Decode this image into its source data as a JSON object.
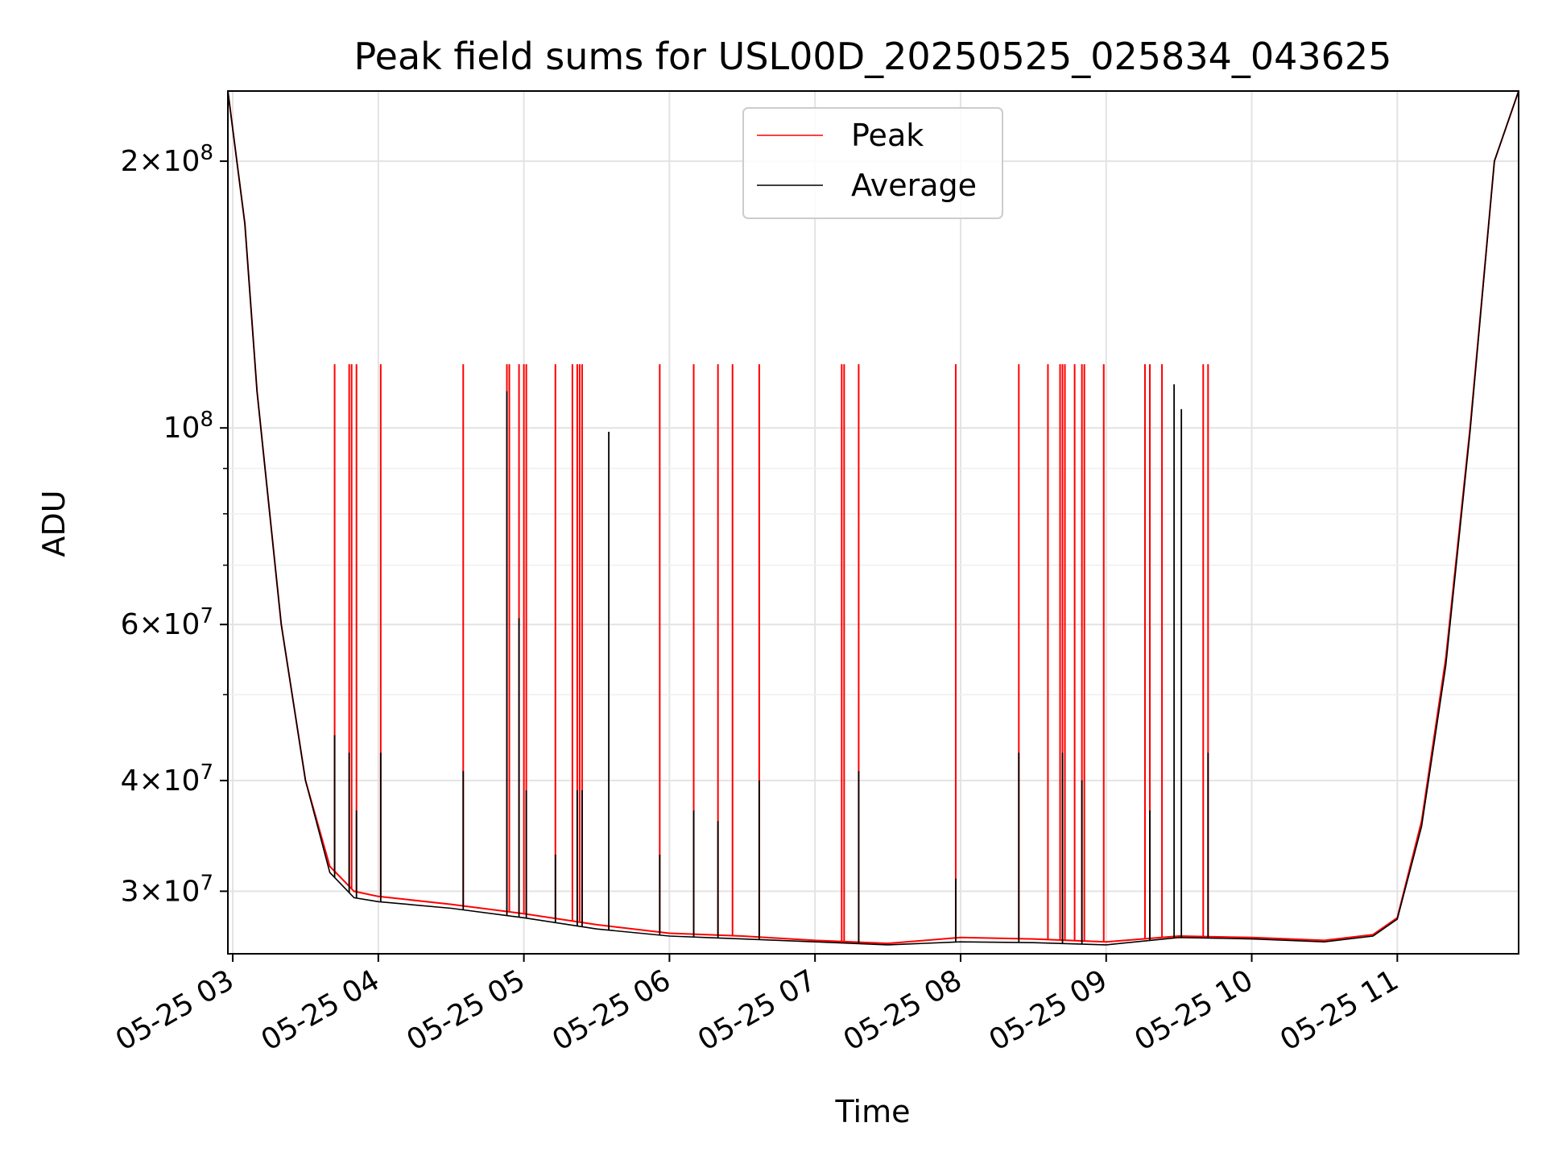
{
  "chart_data": {
    "type": "line",
    "title": "Peak field sums for USL00D_20250525_025834_043625",
    "xlabel": "Time",
    "ylabel": "ADU",
    "x_axis": "time",
    "y_scale": "log",
    "xlim": [
      "2025-05-25 02:58",
      "2025-05-25 11:50"
    ],
    "ylim": [
      25500000,
      240000000
    ],
    "grid": true,
    "legend_position": "upper center",
    "x_ticks": [
      {
        "value": "2025-05-25 03:00",
        "label": "05-25 03"
      },
      {
        "value": "2025-05-25 04:00",
        "label": "05-25 04"
      },
      {
        "value": "2025-05-25 05:00",
        "label": "05-25 05"
      },
      {
        "value": "2025-05-25 06:00",
        "label": "05-25 06"
      },
      {
        "value": "2025-05-25 07:00",
        "label": "05-25 07"
      },
      {
        "value": "2025-05-25 08:00",
        "label": "05-25 08"
      },
      {
        "value": "2025-05-25 09:00",
        "label": "05-25 09"
      },
      {
        "value": "2025-05-25 10:00",
        "label": "05-25 10"
      },
      {
        "value": "2025-05-25 11:00",
        "label": "05-25 11"
      }
    ],
    "y_ticks": [
      {
        "value": 30000000,
        "mantissa": "3",
        "exp": "7"
      },
      {
        "value": 40000000,
        "mantissa": "4",
        "exp": "7"
      },
      {
        "value": 60000000,
        "mantissa": "6",
        "exp": "7"
      },
      {
        "value": 100000000,
        "mantissa": "",
        "exp": "8"
      },
      {
        "value": 200000000,
        "mantissa": "2",
        "exp": "8"
      }
    ],
    "y_minor_ticks": [
      50000000,
      70000000,
      80000000,
      90000000
    ],
    "series": [
      {
        "name": "Peak",
        "color": "#ff0000",
        "points": [
          [
            "2025-05-25 02:58",
            240000000
          ],
          [
            "2025-05-25 03:05",
            170000000
          ],
          [
            "2025-05-25 03:10",
            110000000
          ],
          [
            "2025-05-25 03:20",
            60000000
          ],
          [
            "2025-05-25 03:30",
            40000000
          ],
          [
            "2025-05-25 03:40",
            32000000
          ],
          [
            "2025-05-25 03:50",
            30000000
          ],
          [
            "2025-05-25 04:00",
            29600000
          ],
          [
            "2025-05-25 04:30",
            29000000
          ],
          [
            "2025-05-25 05:00",
            28300000
          ],
          [
            "2025-05-25 05:30",
            27500000
          ],
          [
            "2025-05-25 06:00",
            26900000
          ],
          [
            "2025-05-25 06:30",
            26700000
          ],
          [
            "2025-05-25 07:00",
            26400000
          ],
          [
            "2025-05-25 07:30",
            26200000
          ],
          [
            "2025-05-25 08:00",
            26600000
          ],
          [
            "2025-05-25 08:30",
            26500000
          ],
          [
            "2025-05-25 09:00",
            26300000
          ],
          [
            "2025-05-25 09:30",
            26700000
          ],
          [
            "2025-05-25 10:00",
            26600000
          ],
          [
            "2025-05-25 10:30",
            26400000
          ],
          [
            "2025-05-25 10:50",
            26800000
          ],
          [
            "2025-05-25 11:00",
            28000000
          ],
          [
            "2025-05-25 11:10",
            36000000
          ],
          [
            "2025-05-25 11:20",
            55000000
          ],
          [
            "2025-05-25 11:30",
            100000000
          ],
          [
            "2025-05-25 11:40",
            200000000
          ],
          [
            "2025-05-25 11:50",
            240000000
          ]
        ],
        "spike_level": 118000000,
        "spikes": [
          "2025-05-25 03:42",
          "2025-05-25 03:48",
          "2025-05-25 03:49",
          "2025-05-25 03:51",
          "2025-05-25 04:01",
          "2025-05-25 04:35",
          "2025-05-25 04:53",
          "2025-05-25 04:54",
          "2025-05-25 04:58",
          "2025-05-25 05:00",
          "2025-05-25 05:01",
          "2025-05-25 05:13",
          "2025-05-25 05:20",
          "2025-05-25 05:22",
          "2025-05-25 05:23",
          "2025-05-25 05:24",
          "2025-05-25 05:56",
          "2025-05-25 06:10",
          "2025-05-25 06:20",
          "2025-05-25 06:26",
          "2025-05-25 06:37",
          "2025-05-25 07:11",
          "2025-05-25 07:12",
          "2025-05-25 07:18",
          "2025-05-25 07:58",
          "2025-05-25 08:24",
          "2025-05-25 08:36",
          "2025-05-25 08:41",
          "2025-05-25 08:42",
          "2025-05-25 08:43",
          "2025-05-25 08:47",
          "2025-05-25 08:50",
          "2025-05-25 08:51",
          "2025-05-25 08:59",
          "2025-05-25 09:16",
          "2025-05-25 09:18",
          "2025-05-25 09:23",
          "2025-05-25 09:40",
          "2025-05-25 09:42"
        ]
      },
      {
        "name": "Average",
        "color": "#000000",
        "points": [
          [
            "2025-05-25 02:58",
            240000000
          ],
          [
            "2025-05-25 03:05",
            170000000
          ],
          [
            "2025-05-25 03:10",
            110000000
          ],
          [
            "2025-05-25 03:20",
            60000000
          ],
          [
            "2025-05-25 03:30",
            40000000
          ],
          [
            "2025-05-25 03:40",
            31500000
          ],
          [
            "2025-05-25 03:50",
            29500000
          ],
          [
            "2025-05-25 04:00",
            29200000
          ],
          [
            "2025-05-25 04:30",
            28700000
          ],
          [
            "2025-05-25 05:00",
            28000000
          ],
          [
            "2025-05-25 05:30",
            27200000
          ],
          [
            "2025-05-25 06:00",
            26700000
          ],
          [
            "2025-05-25 06:30",
            26500000
          ],
          [
            "2025-05-25 07:00",
            26300000
          ],
          [
            "2025-05-25 07:30",
            26100000
          ],
          [
            "2025-05-25 08:00",
            26300000
          ],
          [
            "2025-05-25 08:30",
            26250000
          ],
          [
            "2025-05-25 09:00",
            26100000
          ],
          [
            "2025-05-25 09:30",
            26600000
          ],
          [
            "2025-05-25 10:00",
            26500000
          ],
          [
            "2025-05-25 10:30",
            26300000
          ],
          [
            "2025-05-25 10:50",
            26700000
          ],
          [
            "2025-05-25 11:00",
            27900000
          ],
          [
            "2025-05-25 11:10",
            35500000
          ],
          [
            "2025-05-25 11:20",
            54000000
          ],
          [
            "2025-05-25 11:30",
            99000000
          ],
          [
            "2025-05-25 11:40",
            200000000
          ],
          [
            "2025-05-25 11:50",
            240000000
          ]
        ],
        "spikes": [
          {
            "t": "2025-05-25 03:42",
            "v": 45000000
          },
          {
            "t": "2025-05-25 03:48",
            "v": 43000000
          },
          {
            "t": "2025-05-25 03:51",
            "v": 37000000
          },
          {
            "t": "2025-05-25 04:01",
            "v": 43000000
          },
          {
            "t": "2025-05-25 04:35",
            "v": 41000000
          },
          {
            "t": "2025-05-25 04:53",
            "v": 110000000
          },
          {
            "t": "2025-05-25 04:58",
            "v": 61000000
          },
          {
            "t": "2025-05-25 05:01",
            "v": 39000000
          },
          {
            "t": "2025-05-25 05:13",
            "v": 33000000
          },
          {
            "t": "2025-05-25 05:22",
            "v": 39000000
          },
          {
            "t": "2025-05-25 05:24",
            "v": 39000000
          },
          {
            "t": "2025-05-25 05:35",
            "v": 99000000
          },
          {
            "t": "2025-05-25 05:56",
            "v": 33000000
          },
          {
            "t": "2025-05-25 06:10",
            "v": 37000000
          },
          {
            "t": "2025-05-25 06:20",
            "v": 36000000
          },
          {
            "t": "2025-05-25 06:37",
            "v": 40000000
          },
          {
            "t": "2025-05-25 07:18",
            "v": 41000000
          },
          {
            "t": "2025-05-25 07:58",
            "v": 31000000
          },
          {
            "t": "2025-05-25 08:24",
            "v": 43000000
          },
          {
            "t": "2025-05-25 08:42",
            "v": 43000000
          },
          {
            "t": "2025-05-25 08:50",
            "v": 40000000
          },
          {
            "t": "2025-05-25 09:18",
            "v": 37000000
          },
          {
            "t": "2025-05-25 09:28",
            "v": 112000000
          },
          {
            "t": "2025-05-25 09:31",
            "v": 105000000
          },
          {
            "t": "2025-05-25 09:42",
            "v": 43000000
          }
        ]
      }
    ]
  },
  "legend": {
    "items": [
      {
        "label": "Peak",
        "color": "#ff0000"
      },
      {
        "label": "Average",
        "color": "#000000"
      }
    ]
  }
}
